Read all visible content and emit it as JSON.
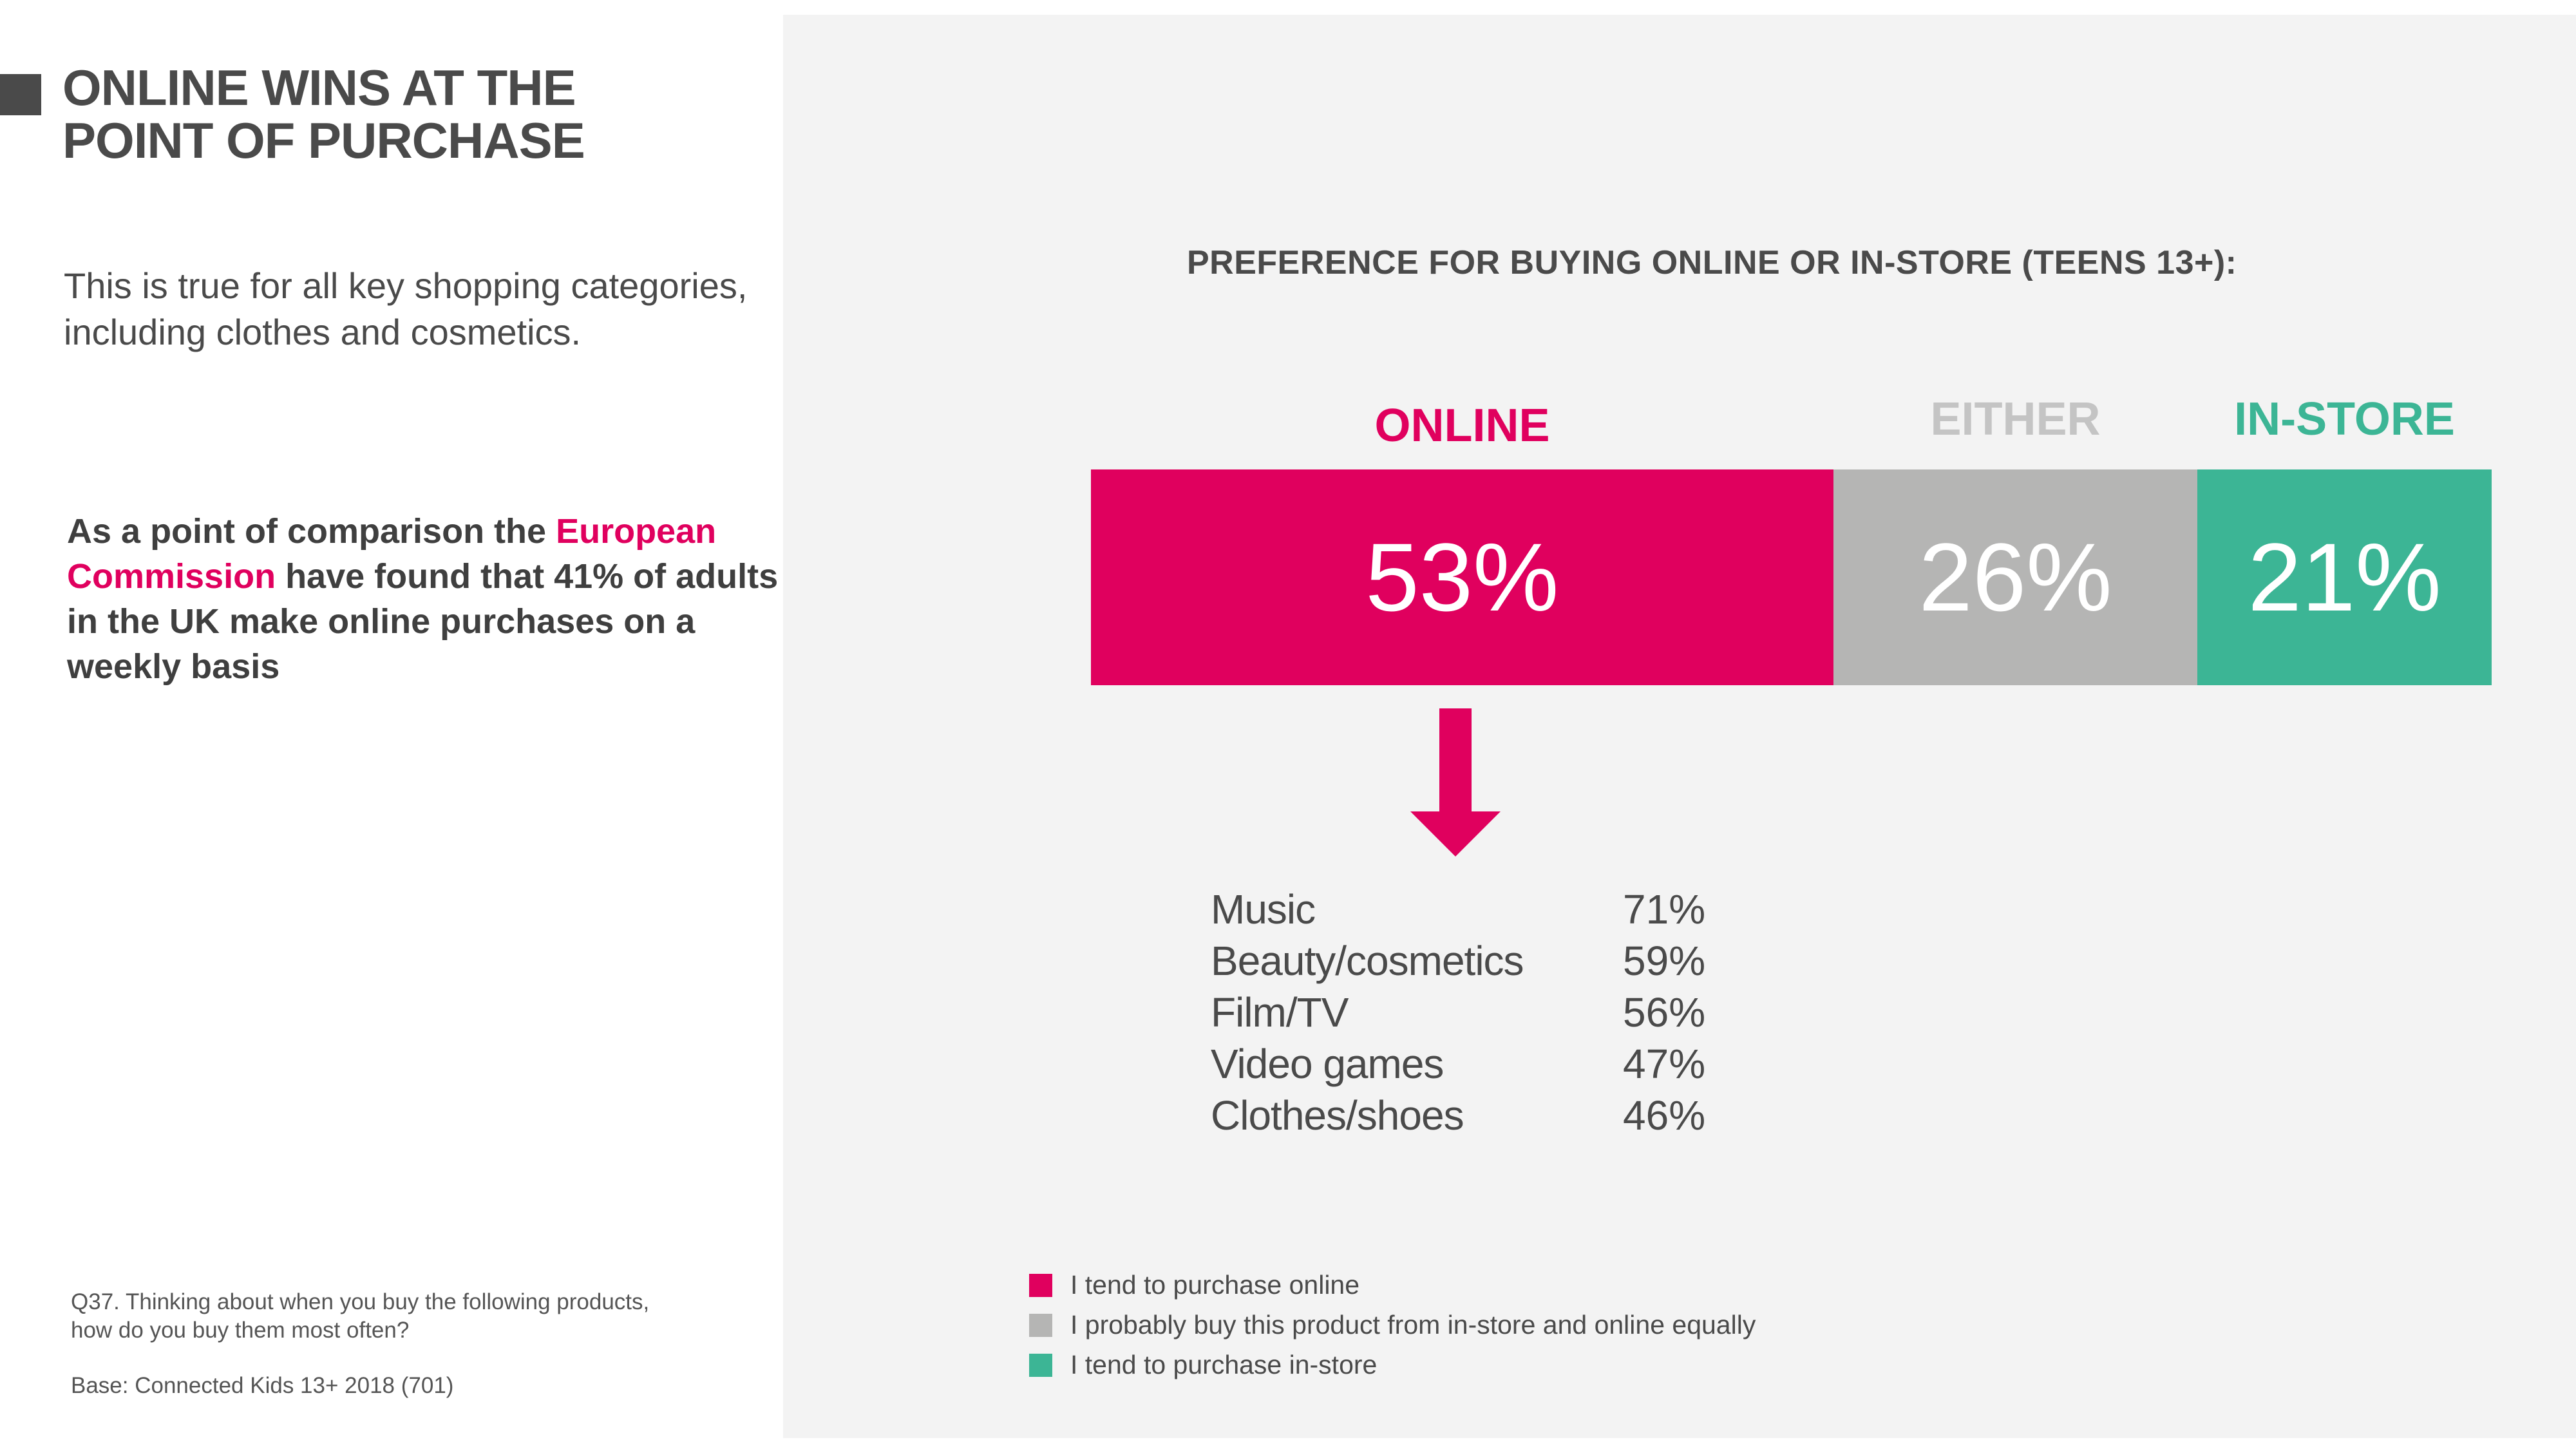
{
  "title": "ONLINE WINS AT THE\nPOINT OF PURCHASE",
  "subtitle": "This is true for all key shopping categories,\nincluding clothes and cosmetics.",
  "comparison": {
    "pre": "As a point of comparison the ",
    "highlight": "European Commission",
    "post": " have found that 41% of adults in the UK make online purchases on a weekly basis"
  },
  "footnote": "Q37. Thinking about when you buy the following products,\nhow do you buy them most often?",
  "base": "Base: Connected Kids 13+ 2018 (701)",
  "colors": {
    "online": "#e0005e",
    "either": "#b5b5b4",
    "instore": "#3cb595",
    "text": "#4a4a4a"
  },
  "chart_data": [
    {
      "type": "bar",
      "orientation": "horizontal-stacked",
      "title": "PREFERENCE FOR BUYING ONLINE OR IN-STORE (TEENS 13+):",
      "series": [
        {
          "name": "ONLINE",
          "value": 53,
          "label": "53%"
        },
        {
          "name": "EITHER",
          "value": 26,
          "label": "26%"
        },
        {
          "name": "IN-STORE",
          "value": 21,
          "label": "21%"
        }
      ]
    },
    {
      "type": "table",
      "rows": [
        {
          "category": "Music",
          "value": 71,
          "label": "71%"
        },
        {
          "category": "Beauty/cosmetics",
          "value": 59,
          "label": "59%"
        },
        {
          "category": "Film/TV",
          "value": 56,
          "label": "56%"
        },
        {
          "category": "Video games",
          "value": 47,
          "label": "47%"
        },
        {
          "category": "Clothes/shoes",
          "value": 46,
          "label": "46%"
        }
      ]
    }
  ],
  "legend": [
    {
      "label": "I tend to purchase online",
      "color": "#e0005e"
    },
    {
      "label": "I probably buy this product from in-store and online equally",
      "color": "#b5b5b4"
    },
    {
      "label": "I tend to purchase in-store",
      "color": "#3cb595"
    }
  ],
  "arrow_icon": "down-arrow-icon"
}
